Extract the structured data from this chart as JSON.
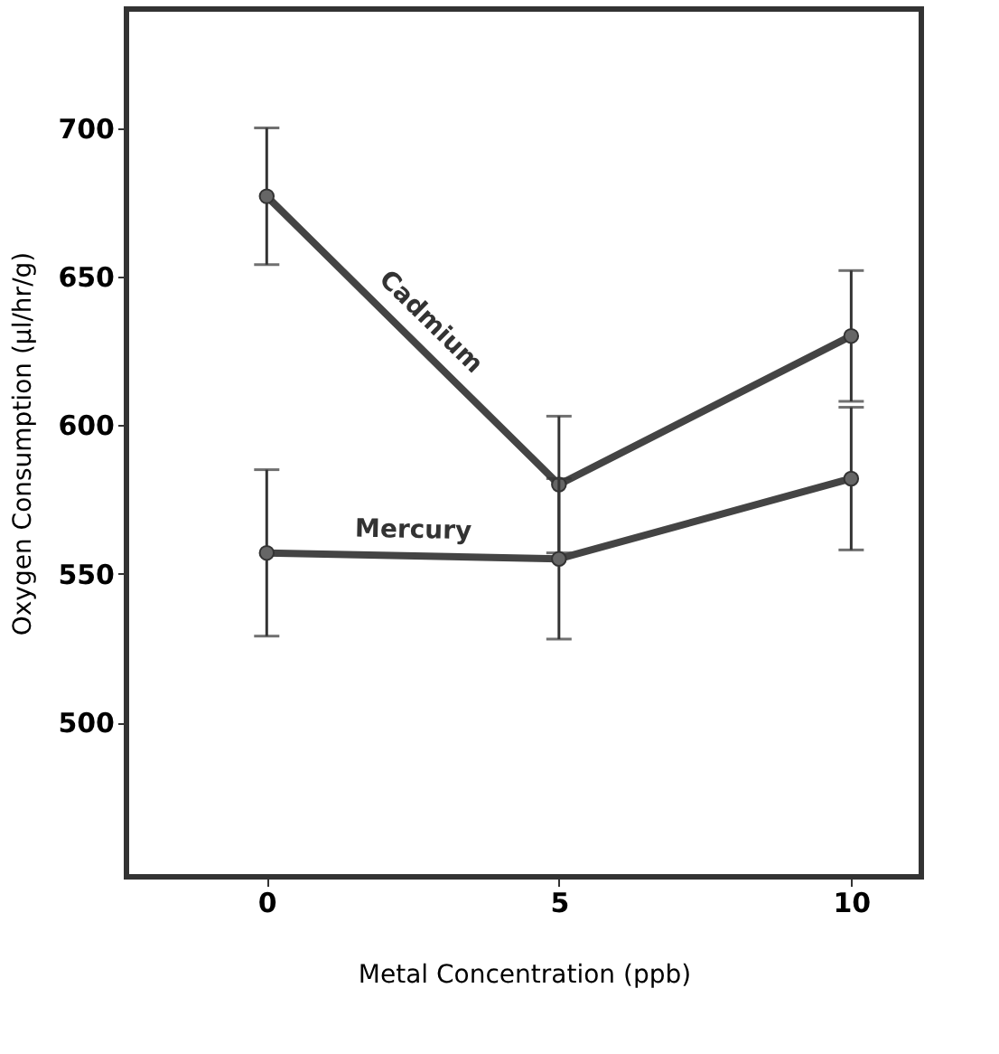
{
  "chart_data": {
    "type": "line",
    "xlabel": "Metal Concentration (ppb)",
    "ylabel": "Oxygen Consumption (µl/hr/g)",
    "x": [
      0,
      5,
      10
    ],
    "xlim": [
      -2.4,
      11.2
    ],
    "xticks": [
      0,
      5,
      10
    ],
    "ylim": [
      448,
      740
    ],
    "yticks": [
      500,
      550,
      600,
      650,
      700
    ],
    "marker": "circle",
    "line_style": "solid",
    "grid": false,
    "series": [
      {
        "name": "Cadmium",
        "color": "#444444",
        "values": [
          677,
          580,
          630
        ],
        "errors": [
          23,
          23,
          22
        ]
      },
      {
        "name": "Mercury",
        "color": "#444444",
        "values": [
          557,
          555,
          582
        ],
        "errors": [
          28,
          27,
          24
        ]
      }
    ]
  }
}
